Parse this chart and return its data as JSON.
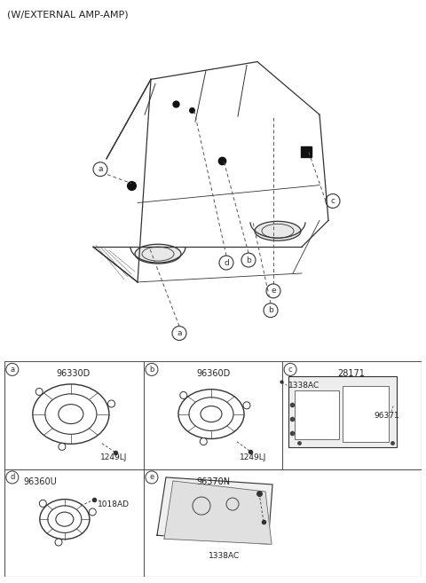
{
  "title": "(W/EXTERNAL AMP-AMP)",
  "bg_color": "#ffffff",
  "line_color": "#333333",
  "grid_color": "#555555",
  "cells": [
    {
      "id": "a",
      "part_num": "96330D",
      "sub_num": "1249LJ",
      "row": 0,
      "col": 0,
      "type": "speaker_large"
    },
    {
      "id": "b",
      "part_num": "96360D",
      "sub_num": "1249LJ",
      "row": 0,
      "col": 1,
      "type": "speaker_medium"
    },
    {
      "id": "c",
      "part_num": "28171",
      "sub_num1": "1338AC",
      "sub_num2": "96371",
      "row": 0,
      "col": 2,
      "type": "amp"
    },
    {
      "id": "d",
      "part_num": "96360U",
      "sub_num": "1018AD",
      "row": 1,
      "col": 0,
      "type": "speaker_small"
    },
    {
      "id": "e",
      "part_num": "96370N",
      "sub_num": "1338AC",
      "row": 1,
      "col": 1,
      "type": "subwoofer"
    }
  ]
}
